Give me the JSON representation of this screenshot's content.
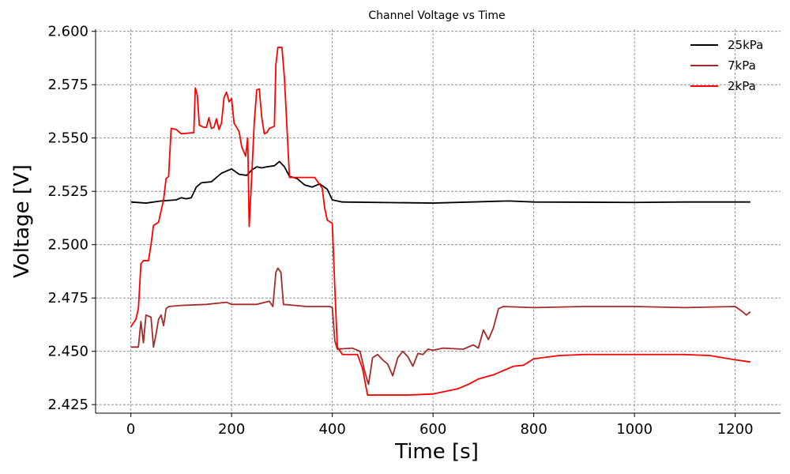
{
  "chart_data": {
    "type": "line",
    "title": "Channel Voltage vs Time",
    "xlabel": "Time [s]",
    "ylabel": "Voltage [V]",
    "xlim": [
      -70,
      1290
    ],
    "ylim": [
      2.421,
      2.601
    ],
    "xticks": [
      0,
      200,
      400,
      600,
      800,
      1000,
      1200
    ],
    "yticks": [
      2.425,
      2.45,
      2.475,
      2.5,
      2.525,
      2.55,
      2.575,
      2.6
    ],
    "xtick_labels": [
      "0",
      "200",
      "400",
      "600",
      "800",
      "1000",
      "1200"
    ],
    "ytick_labels": [
      "2.425",
      "2.450",
      "2.475",
      "2.500",
      "2.525",
      "2.550",
      "2.575",
      "2.600"
    ],
    "grid": true,
    "legend_position": "top-right",
    "series": [
      {
        "name": "25kPa",
        "color": "#000000",
        "points": [
          [
            0,
            2.52
          ],
          [
            30,
            2.5195
          ],
          [
            60,
            2.5205
          ],
          [
            90,
            2.521
          ],
          [
            100,
            2.522
          ],
          [
            110,
            2.5215
          ],
          [
            120,
            2.522
          ],
          [
            130,
            2.527
          ],
          [
            140,
            2.529
          ],
          [
            160,
            2.5295
          ],
          [
            180,
            2.5335
          ],
          [
            200,
            2.5355
          ],
          [
            215,
            2.533
          ],
          [
            230,
            2.5325
          ],
          [
            240,
            2.535
          ],
          [
            250,
            2.5365
          ],
          [
            260,
            2.536
          ],
          [
            270,
            2.5365
          ],
          [
            285,
            2.537
          ],
          [
            295,
            2.539
          ],
          [
            305,
            2.5365
          ],
          [
            315,
            2.532
          ],
          [
            330,
            2.531
          ],
          [
            345,
            2.528
          ],
          [
            360,
            2.527
          ],
          [
            375,
            2.5285
          ],
          [
            390,
            2.526
          ],
          [
            400,
            2.521
          ],
          [
            420,
            2.52
          ],
          [
            600,
            2.5195
          ],
          [
            750,
            2.5205
          ],
          [
            800,
            2.52
          ],
          [
            1000,
            2.5198
          ],
          [
            1100,
            2.52
          ],
          [
            1230,
            2.52
          ]
        ]
      },
      {
        "name": "7kPa",
        "color": "#a52a2a",
        "points": [
          [
            0,
            2.452
          ],
          [
            15,
            2.452
          ],
          [
            20,
            2.464
          ],
          [
            25,
            2.454
          ],
          [
            30,
            2.467
          ],
          [
            40,
            2.466
          ],
          [
            45,
            2.452
          ],
          [
            50,
            2.458
          ],
          [
            55,
            2.465
          ],
          [
            60,
            2.467
          ],
          [
            65,
            2.462
          ],
          [
            70,
            2.47
          ],
          [
            75,
            2.471
          ],
          [
            100,
            2.4715
          ],
          [
            150,
            2.472
          ],
          [
            190,
            2.473
          ],
          [
            200,
            2.472
          ],
          [
            250,
            2.472
          ],
          [
            275,
            2.4735
          ],
          [
            282,
            2.471
          ],
          [
            288,
            2.487
          ],
          [
            292,
            2.489
          ],
          [
            298,
            2.487
          ],
          [
            303,
            2.472
          ],
          [
            350,
            2.471
          ],
          [
            395,
            2.471
          ],
          [
            400,
            2.4705
          ],
          [
            405,
            2.455
          ],
          [
            410,
            2.451
          ],
          [
            440,
            2.4515
          ],
          [
            455,
            2.45
          ],
          [
            465,
            2.44
          ],
          [
            472,
            2.4345
          ],
          [
            480,
            2.447
          ],
          [
            490,
            2.4485
          ],
          [
            500,
            2.446
          ],
          [
            510,
            2.444
          ],
          [
            520,
            2.4385
          ],
          [
            530,
            2.447
          ],
          [
            540,
            2.45
          ],
          [
            550,
            2.4475
          ],
          [
            560,
            2.443
          ],
          [
            570,
            2.449
          ],
          [
            580,
            2.4485
          ],
          [
            590,
            2.451
          ],
          [
            600,
            2.4505
          ],
          [
            620,
            2.4515
          ],
          [
            660,
            2.451
          ],
          [
            680,
            2.453
          ],
          [
            690,
            2.4515
          ],
          [
            700,
            2.46
          ],
          [
            710,
            2.4555
          ],
          [
            720,
            2.461
          ],
          [
            730,
            2.47
          ],
          [
            740,
            2.471
          ],
          [
            800,
            2.4705
          ],
          [
            900,
            2.471
          ],
          [
            1000,
            2.471
          ],
          [
            1100,
            2.4705
          ],
          [
            1200,
            2.471
          ],
          [
            1215,
            2.4685
          ],
          [
            1222,
            2.467
          ],
          [
            1230,
            2.4685
          ]
        ]
      },
      {
        "name": "2kPa",
        "color": "#ff0000",
        "points": [
          [
            0,
            2.4615
          ],
          [
            10,
            2.465
          ],
          [
            15,
            2.47
          ],
          [
            20,
            2.491
          ],
          [
            25,
            2.4925
          ],
          [
            35,
            2.4925
          ],
          [
            40,
            2.5
          ],
          [
            45,
            2.509
          ],
          [
            55,
            2.5105
          ],
          [
            65,
            2.521
          ],
          [
            70,
            2.531
          ],
          [
            75,
            2.532
          ],
          [
            80,
            2.5545
          ],
          [
            90,
            2.554
          ],
          [
            100,
            2.552
          ],
          [
            125,
            2.5525
          ],
          [
            128,
            2.5735
          ],
          [
            132,
            2.57
          ],
          [
            136,
            2.556
          ],
          [
            145,
            2.555
          ],
          [
            150,
            2.555
          ],
          [
            155,
            2.5595
          ],
          [
            160,
            2.5545
          ],
          [
            165,
            2.555
          ],
          [
            170,
            2.559
          ],
          [
            175,
            2.554
          ],
          [
            180,
            2.557
          ],
          [
            185,
            2.569
          ],
          [
            190,
            2.5715
          ],
          [
            195,
            2.567
          ],
          [
            200,
            2.5685
          ],
          [
            205,
            2.557
          ],
          [
            215,
            2.553
          ],
          [
            220,
            2.546
          ],
          [
            228,
            2.5415
          ],
          [
            232,
            2.55
          ],
          [
            235,
            2.5085
          ],
          [
            240,
            2.532
          ],
          [
            245,
            2.557
          ],
          [
            250,
            2.5725
          ],
          [
            255,
            2.573
          ],
          [
            260,
            2.5595
          ],
          [
            265,
            2.552
          ],
          [
            270,
            2.5525
          ],
          [
            275,
            2.5545
          ],
          [
            285,
            2.5555
          ],
          [
            288,
            2.5845
          ],
          [
            292,
            2.5925
          ],
          [
            300,
            2.5925
          ],
          [
            305,
            2.578
          ],
          [
            315,
            2.5315
          ],
          [
            340,
            2.5315
          ],
          [
            360,
            2.5315
          ],
          [
            365,
            2.5315
          ],
          [
            380,
            2.5265
          ],
          [
            385,
            2.517
          ],
          [
            390,
            2.5115
          ],
          [
            400,
            2.51
          ],
          [
            405,
            2.48
          ],
          [
            410,
            2.452
          ],
          [
            420,
            2.4485
          ],
          [
            450,
            2.4485
          ],
          [
            460,
            2.442
          ],
          [
            470,
            2.4295
          ],
          [
            480,
            2.4295
          ],
          [
            550,
            2.4295
          ],
          [
            600,
            2.43
          ],
          [
            620,
            2.431
          ],
          [
            650,
            2.4325
          ],
          [
            670,
            2.4345
          ],
          [
            690,
            2.437
          ],
          [
            720,
            2.439
          ],
          [
            740,
            2.441
          ],
          [
            760,
            2.443
          ],
          [
            780,
            2.4435
          ],
          [
            800,
            2.4465
          ],
          [
            850,
            2.448
          ],
          [
            900,
            2.4485
          ],
          [
            1000,
            2.4485
          ],
          [
            1100,
            2.4485
          ],
          [
            1150,
            2.448
          ],
          [
            1200,
            2.446
          ],
          [
            1230,
            2.445
          ]
        ]
      }
    ]
  }
}
